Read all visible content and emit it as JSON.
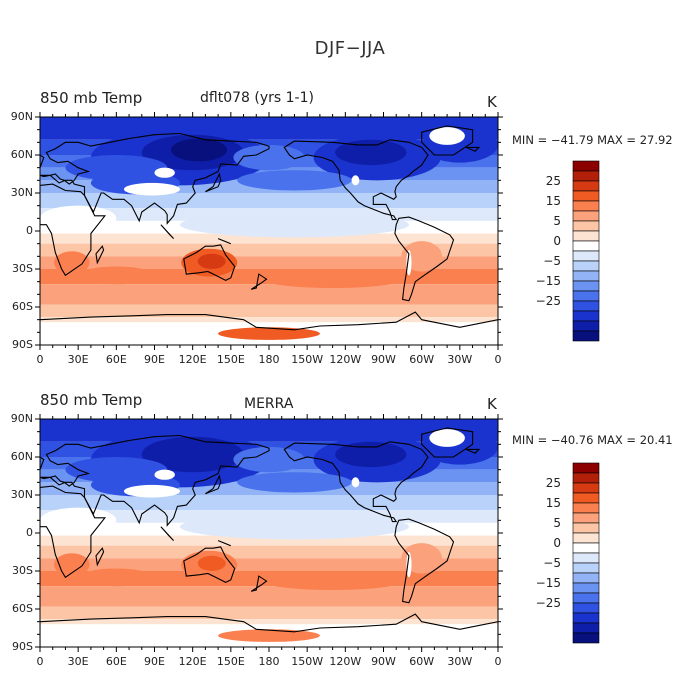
{
  "title": "DJF−JJA",
  "panels": [
    {
      "variable": "850 mb Temp",
      "source": "dflt078 (yrs 1-1)",
      "units": "K",
      "stats": "MIN = −41.79  MAX =  27.92"
    },
    {
      "variable": "850 mb Temp",
      "source": "MERRA",
      "units": "K",
      "stats": "MIN = −40.76  MAX =  20.41"
    }
  ],
  "lat_ticks": [
    "90N",
    "60N",
    "30N",
    "0",
    "30S",
    "60S",
    "90S"
  ],
  "lon_ticks": [
    "0",
    "30E",
    "60E",
    "90E",
    "120E",
    "150E",
    "180",
    "150W",
    "120W",
    "90W",
    "60W",
    "30W",
    "0"
  ],
  "colorbar": {
    "labels": [
      "25",
      "15",
      "5",
      "0",
      "−5",
      "−15",
      "−25"
    ],
    "colors": [
      "#8c0000",
      "#b3200a",
      "#d63a12",
      "#f05a23",
      "#fb8050",
      "#fba27c",
      "#fbc5a6",
      "#fde4d2",
      "#ffffff",
      "#dde9fb",
      "#b9d2fa",
      "#92b4f7",
      "#6b93f2",
      "#4a72ec",
      "#2f52e3",
      "#1a33cf",
      "#0f1ea8",
      "#07107d"
    ]
  },
  "map_fill_colors": {
    "land_white": "#ffffff",
    "coast": "#000000"
  }
}
